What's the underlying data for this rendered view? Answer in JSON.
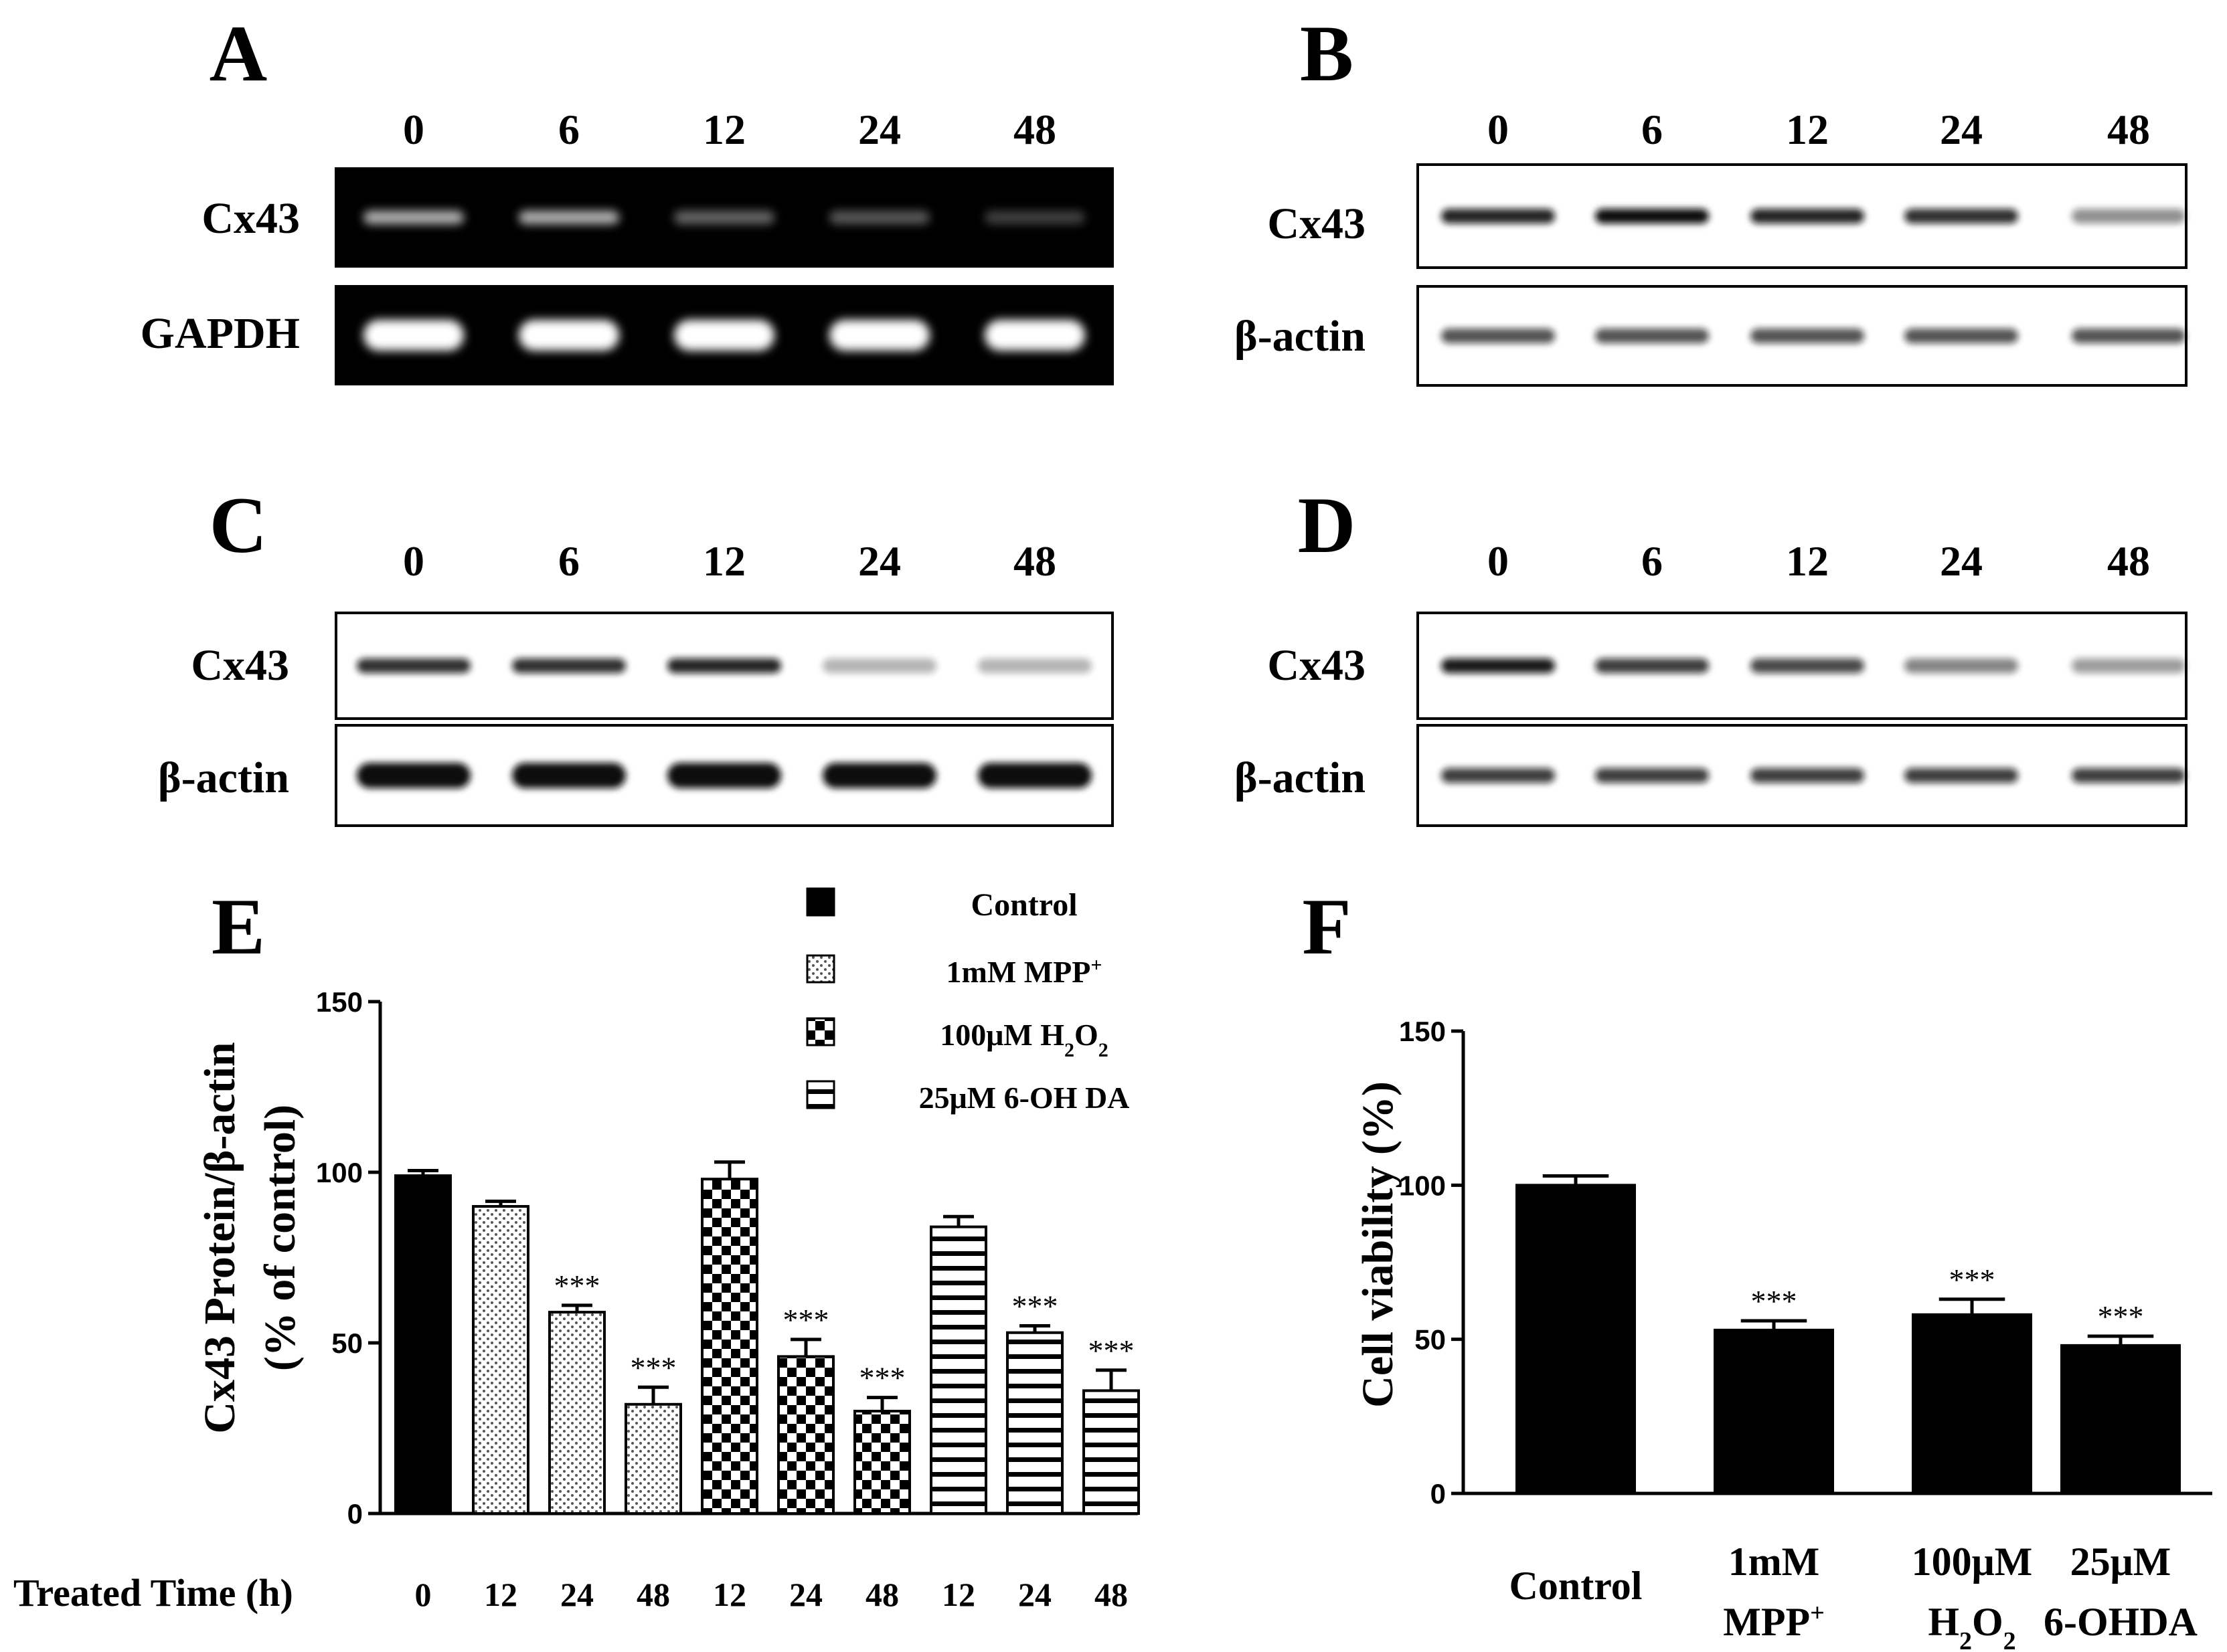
{
  "blot_panels": [
    {
      "letter": "A",
      "style": "gel",
      "lanes": [
        "0",
        "6",
        "12",
        "24",
        "48"
      ],
      "rows": [
        {
          "label": "Cx43",
          "intensities": [
            0.7,
            0.7,
            0.4,
            0.35,
            0.25
          ]
        },
        {
          "label": "GAPDH",
          "intensities": [
            1.0,
            1.0,
            1.0,
            1.0,
            1.0
          ]
        }
      ]
    },
    {
      "letter": "B",
      "style": "western",
      "lanes": [
        "0",
        "6",
        "12",
        "24",
        "48"
      ],
      "rows": [
        {
          "label": "Cx43",
          "intensities": [
            0.9,
            1.0,
            0.9,
            0.85,
            0.45
          ]
        },
        {
          "label": "β-actin",
          "intensities": [
            0.7,
            0.7,
            0.7,
            0.7,
            0.7
          ]
        }
      ]
    },
    {
      "letter": "C",
      "style": "western",
      "lanes": [
        "0",
        "6",
        "12",
        "24",
        "48"
      ],
      "rows": [
        {
          "label": "Cx43",
          "intensities": [
            0.85,
            0.85,
            0.9,
            0.3,
            0.3
          ]
        },
        {
          "label": "β-actin",
          "intensities": [
            1.0,
            1.0,
            1.0,
            1.0,
            1.0
          ]
        }
      ]
    },
    {
      "letter": "D",
      "style": "western",
      "lanes": [
        "0",
        "6",
        "12",
        "24",
        "48"
      ],
      "rows": [
        {
          "label": "Cx43",
          "intensities": [
            0.95,
            0.8,
            0.75,
            0.5,
            0.4
          ]
        },
        {
          "label": "β-actin",
          "intensities": [
            0.8,
            0.8,
            0.8,
            0.8,
            0.8
          ]
        }
      ]
    }
  ],
  "chart_data": [
    {
      "panel": "E",
      "type": "bar",
      "ylabel_line1": "Cx43 Protein/β-actin",
      "ylabel_line2": "(% of control)",
      "xlabel": "Treated Time (h)",
      "ylim": [
        0,
        150
      ],
      "yticks": [
        0,
        50,
        100,
        150
      ],
      "categories": [
        "0",
        "12",
        "24",
        "48",
        "12",
        "24",
        "48",
        "12",
        "24",
        "48"
      ],
      "values": [
        99,
        90,
        59,
        32,
        98,
        46,
        30,
        84,
        53,
        36
      ],
      "errors": [
        1.5,
        1.5,
        2,
        5,
        5,
        5,
        4,
        3,
        2,
        6
      ],
      "groups": [
        0,
        1,
        1,
        1,
        2,
        2,
        2,
        3,
        3,
        3
      ],
      "significance": [
        "",
        "",
        "***",
        "***",
        "",
        "***",
        "***",
        "",
        "***",
        "***"
      ],
      "legend_position": "top-right",
      "legend": [
        {
          "label": "Control",
          "pattern": "solid"
        },
        {
          "label_main": "1mM MPP",
          "label_sup": "+",
          "pattern": "dots"
        },
        {
          "label_main": "100μM H",
          "label_sub1": "2",
          "label_mid": "O",
          "label_sub2": "2",
          "pattern": "checker"
        },
        {
          "label": "25μM 6-OH DA",
          "pattern": "hstripes"
        }
      ]
    },
    {
      "panel": "F",
      "type": "bar",
      "ylabel": "Cell  viability (%)",
      "ylim": [
        0,
        150
      ],
      "yticks": [
        0,
        50,
        100,
        150
      ],
      "values": [
        100,
        53,
        58,
        48
      ],
      "errors": [
        3,
        3,
        5,
        3
      ],
      "significance": [
        "",
        "***",
        "***",
        "***"
      ],
      "categories": [
        {
          "line1": "Control"
        },
        {
          "line1": "1mM",
          "line2_main": "MPP",
          "line2_sup": "+"
        },
        {
          "line1": "100μM",
          "line2_main": "H",
          "line2_sub1": "2",
          "line2_mid": "O",
          "line2_sub2": "2"
        },
        {
          "line1": "25μM",
          "line2_main": "6-OHDA"
        }
      ]
    }
  ],
  "colors": {
    "bar": "#000000",
    "background": "#ffffff",
    "gel": "#000000"
  }
}
